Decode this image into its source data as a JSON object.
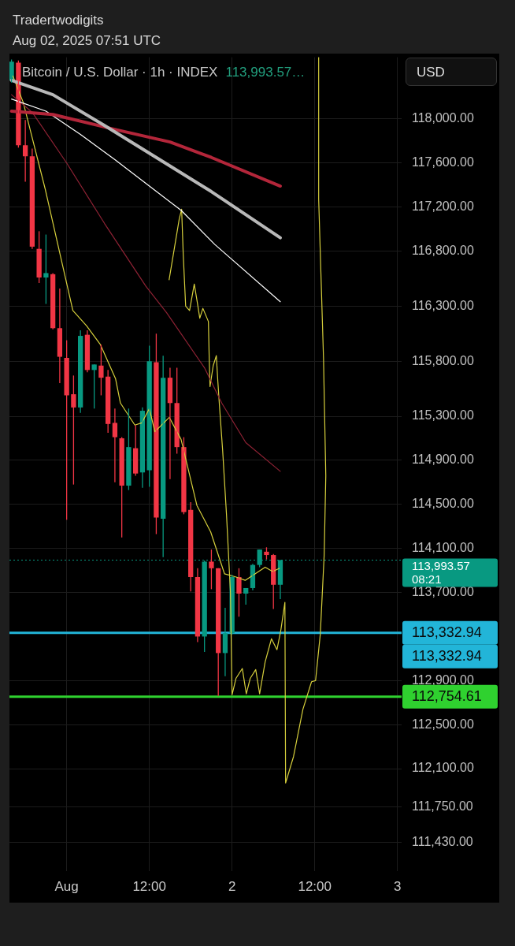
{
  "chart_data": {
    "type": "candlestick",
    "title": "Bitcoin / U.S. Dollar · 1h · INDEX",
    "annotations": [
      "Tradertwodigits",
      "Aug 02, 2025 07:51 UTC",
      "113,993.57…",
      "USD",
      "08:21",
      "113,332.94"
    ],
    "x": [
      "2025-07-31T16:00",
      "2025-07-31T17:00",
      "2025-07-31T18:00",
      "2025-07-31T19:00",
      "2025-07-31T20:00",
      "2025-07-31T21:00",
      "2025-07-31T22:00",
      "2025-07-31T23:00",
      "2025-08-01T00:00",
      "2025-08-01T01:00",
      "2025-08-01T02:00",
      "2025-08-01T03:00",
      "2025-08-01T04:00",
      "2025-08-01T05:00",
      "2025-08-01T06:00",
      "2025-08-01T07:00",
      "2025-08-01T08:00",
      "2025-08-01T09:00",
      "2025-08-01T10:00",
      "2025-08-01T11:00",
      "2025-08-01T12:00",
      "2025-08-01T13:00",
      "2025-08-01T14:00",
      "2025-08-01T15:00",
      "2025-08-01T16:00",
      "2025-08-01T17:00",
      "2025-08-01T18:00",
      "2025-08-01T19:00",
      "2025-08-01T20:00",
      "2025-08-01T21:00",
      "2025-08-01T22:00",
      "2025-08-01T23:00",
      "2025-08-02T00:00",
      "2025-08-02T01:00",
      "2025-08-02T02:00",
      "2025-08-02T03:00",
      "2025-08-02T04:00",
      "2025-08-02T05:00",
      "2025-08-02T06:00",
      "2025-08-02T07:00"
    ],
    "ohlc": [
      [
        118350,
        118540,
        118330,
        118520
      ],
      [
        118510,
        118530,
        117740,
        117760
      ],
      [
        117760,
        117990,
        117430,
        117660
      ],
      [
        117660,
        117730,
        116820,
        116840
      ],
      [
        116820,
        116980,
        116510,
        116560
      ],
      [
        116560,
        116950,
        116320,
        116600
      ],
      [
        116590,
        116600,
        116090,
        116100
      ],
      [
        116100,
        116460,
        115600,
        115840
      ],
      [
        115830,
        115990,
        114360,
        115490
      ],
      [
        115500,
        115670,
        114680,
        115380
      ],
      [
        115380,
        116080,
        115330,
        116030
      ],
      [
        116040,
        116080,
        115700,
        115720
      ],
      [
        115720,
        115770,
        115370,
        115770
      ],
      [
        115760,
        115950,
        115490,
        115650
      ],
      [
        115660,
        115720,
        115150,
        115230
      ],
      [
        115240,
        115370,
        114700,
        115110
      ],
      [
        115100,
        115110,
        114200,
        114670
      ],
      [
        114670,
        115370,
        114630,
        115020
      ],
      [
        115010,
        115220,
        114760,
        114780
      ],
      [
        114790,
        115380,
        114650,
        115350
      ],
      [
        114810,
        115940,
        114660,
        115800
      ],
      [
        115790,
        116050,
        114230,
        114380
      ],
      [
        114370,
        115850,
        114020,
        115650
      ],
      [
        115650,
        115740,
        114730,
        115420
      ],
      [
        115420,
        115740,
        114960,
        115020
      ],
      [
        115020,
        115110,
        114410,
        114430
      ],
      [
        114450,
        114520,
        113710,
        113840
      ],
      [
        113840,
        113920,
        113250,
        113300
      ],
      [
        113300,
        113990,
        113160,
        113980
      ],
      [
        113980,
        114090,
        113730,
        113920
      ],
      [
        113920,
        113920,
        112760,
        113150
      ],
      [
        113150,
        113560,
        112940,
        113330
      ],
      [
        113330,
        113860,
        113320,
        113840
      ],
      [
        113840,
        113920,
        113480,
        113690
      ],
      [
        113690,
        113740,
        113590,
        113740
      ],
      [
        113740,
        113960,
        113720,
        113950
      ],
      [
        113950,
        114090,
        113930,
        114090
      ],
      [
        114070,
        114110,
        114000,
        114040
      ],
      [
        114040,
        114050,
        113550,
        113770
      ],
      [
        113770,
        113993.57,
        113640,
        113993.57
      ]
    ],
    "colors": [
      "#089981",
      "#f23645",
      "#f23645",
      "#f23645",
      "#f23645",
      "#089981",
      "#f23645",
      "#f23645",
      "#f23645",
      "#f23645",
      "#089981",
      "#f23645",
      "#089981",
      "#f23645",
      "#f23645",
      "#f23645",
      "#f23645",
      "#089981",
      "#f23645",
      "#089981",
      "#089981",
      "#f23645",
      "#089981",
      "#f23645",
      "#f23645",
      "#f23645",
      "#f23645",
      "#f23645",
      "#089981",
      "#f23645",
      "#f23645",
      "#089981",
      "#089981",
      "#f23645",
      "#089981",
      "#089981",
      "#089981",
      "#f23645",
      "#f23645",
      "#089981"
    ],
    "series": [
      {
        "type": "line",
        "color": "#b8b8b8",
        "x": [
          "2025-07-31T16:00",
          "2025-07-31T22:00",
          "2025-08-01T05:30",
          "2025-08-01T13:00",
          "2025-08-01T21:00",
          "2025-08-02T07:00"
        ],
        "values": [
          118350,
          118220,
          117940,
          117650,
          117340,
          116920
        ]
      },
      {
        "type": "line",
        "color": "#b3263a",
        "x": [
          "2025-07-31T16:00",
          "2025-07-31T22:00",
          "2025-08-01T06:36",
          "2025-08-01T15:00",
          "2025-08-01T21:00",
          "2025-08-02T07:00"
        ],
        "values": [
          118070,
          118040,
          117910,
          117790,
          117650,
          117390
        ]
      },
      {
        "type": "line",
        "color": "#ffffff",
        "x": [
          "2025-07-31T16:00",
          "2025-07-31T21:00",
          "2025-08-01T02:00",
          "2025-08-01T07:00",
          "2025-08-01T12:00",
          "2025-08-01T16:36",
          "2025-08-01T21:30",
          "2025-08-02T07:00"
        ],
        "values": [
          118180,
          118070,
          117860,
          117630,
          117390,
          117170,
          116860,
          116340
        ]
      },
      {
        "type": "line",
        "color": "#8e2234",
        "x": [
          "2025-07-31T16:00",
          "2025-07-31T19:00",
          "2025-08-01T00:00",
          "2025-08-01T05:30",
          "2025-08-01T11:30",
          "2025-08-01T14:30",
          "2025-08-01T20:00",
          "2025-08-01T22:30",
          "2025-08-02T02:00",
          "2025-08-02T07:00"
        ],
        "values": [
          118220,
          118060,
          117600,
          117050,
          116480,
          116240,
          115740,
          115420,
          115060,
          114800
        ]
      },
      {
        "type": "line",
        "color": "#d6cf3c",
        "x": [
          "2025-07-31T16:12",
          "2025-07-31T17:42",
          "2025-07-31T20:54",
          "2025-08-01T00:54",
          "2025-08-01T02:54",
          "2025-08-01T04:54",
          "2025-08-01T07:06",
          "2025-08-01T07:48",
          "2025-08-01T09:54",
          "2025-08-01T10:54",
          "2025-08-01T12:00",
          "2025-08-01T12:48",
          "2025-08-01T14:54",
          "2025-08-01T16:36",
          "2025-08-01T18:54",
          "2025-08-01T20:54",
          "2025-08-01T22:54",
          "2025-08-02T00:36",
          "2025-08-02T01:54",
          "2025-08-02T04:48",
          "2025-08-02T05:54",
          "2025-08-02T06:54"
        ],
        "values": [
          118390,
          118150,
          117360,
          116260,
          116120,
          115950,
          115640,
          115420,
          115220,
          115240,
          115370,
          115160,
          115290,
          115090,
          114490,
          114250,
          113870,
          113840,
          113810,
          113930,
          113890,
          113920
        ]
      },
      {
        "type": "line",
        "color": "#d6cf3c",
        "x": [
          "2025-08-01T14:52",
          "2025-08-01T16:20",
          "2025-08-01T16:41",
          "2025-08-01T16:55",
          "2025-08-01T17:16",
          "2025-08-01T17:50",
          "2025-08-01T18:31",
          "2025-08-01T18:58",
          "2025-08-01T19:19",
          "2025-08-01T19:46",
          "2025-08-01T20:34",
          "2025-08-01T20:41",
          "2025-08-01T20:48",
          "2025-08-01T21:16",
          "2025-08-01T21:43",
          "2025-08-01T21:56",
          "2025-08-01T22:10",
          "2025-08-01T22:38",
          "2025-08-01T23:12",
          "2025-08-01T23:46",
          "2025-08-02T00:00",
          "2025-08-02T00:34",
          "2025-08-02T01:29",
          "2025-08-02T02:04",
          "2025-08-02T02:38",
          "2025-08-02T03:26",
          "2025-08-02T04:00",
          "2025-08-02T04:48",
          "2025-08-02T05:43",
          "2025-08-02T06:31",
          "2025-08-02T07:05",
          "2025-08-02T07:40",
          "2025-08-02T07:46",
          "2025-08-02T08:55",
          "2025-08-02T10:17",
          "2025-08-02T11:32",
          "2025-08-02T12:07",
          "2025-08-02T12:48",
          "2025-08-02T13:22",
          "2025-08-02T13:36",
          "2025-08-02T13:16",
          "2025-08-02T12:34",
          "2025-08-02T12:34"
        ],
        "values": [
          116540,
          117090,
          117180,
          116770,
          116300,
          116260,
          116500,
          116330,
          116190,
          116280,
          116160,
          115830,
          115570,
          115760,
          115850,
          115620,
          115400,
          114990,
          114400,
          113700,
          112770,
          112920,
          113010,
          112780,
          112920,
          113000,
          112780,
          113070,
          113280,
          113180,
          113360,
          113610,
          111970,
          112210,
          112640,
          112890,
          112900,
          113320,
          114040,
          114760,
          115830,
          117270,
          118560
        ]
      }
    ],
    "xlim": [
      "2025-07-31T15:42",
      "2025-08-03T00:36"
    ],
    "xticks": [
      {
        "value": "2025-08-01",
        "label": "Aug"
      },
      {
        "value": "2025-08-01T12:00",
        "label": "12:00"
      },
      {
        "value": "2025-08-02",
        "label": "2"
      },
      {
        "value": "2025-08-02T12:00",
        "label": "12:00"
      },
      {
        "value": "2025-08-03",
        "label": "3"
      }
    ],
    "ylim": [
      111170,
      118560
    ],
    "yticks": [
      {
        "value": 111430,
        "label": "111,430.00"
      },
      {
        "value": 111750,
        "label": "111,750.00"
      },
      {
        "value": 112100,
        "label": "112,100.00"
      },
      {
        "value": 112500,
        "label": "112,500.00"
      },
      {
        "value": 112900,
        "label": "112,900.00"
      },
      {
        "value": 113700,
        "label": "113,700.00"
      },
      {
        "value": 114100,
        "label": "114,100.00"
      },
      {
        "value": 114500,
        "label": "114,500.00"
      },
      {
        "value": 114900,
        "label": "114,900.00"
      },
      {
        "value": 115300,
        "label": "115,300.00"
      },
      {
        "value": 115800,
        "label": "115,800.00"
      },
      {
        "value": 116300,
        "label": "116,300.00"
      },
      {
        "value": 116800,
        "label": "116,800.00"
      },
      {
        "value": 117200,
        "label": "117,200.00"
      },
      {
        "value": 117600,
        "label": "117,600.00"
      },
      {
        "value": 118000,
        "label": "118,000.00"
      }
    ],
    "ref_lines": [
      {
        "axis": "y",
        "value": 113993.57,
        "label": "113,993.57",
        "color": "#089981",
        "line_style": "dotted"
      },
      {
        "axis": "y",
        "value": 113332.94,
        "label": "113,332.94",
        "color": "#22b5d8",
        "line_style": "solid"
      },
      {
        "axis": "y",
        "value": 112754.61,
        "label": "112,754.61",
        "color": "#2fd12f",
        "line_style": "solid"
      }
    ],
    "grid": true,
    "legend": false
  }
}
